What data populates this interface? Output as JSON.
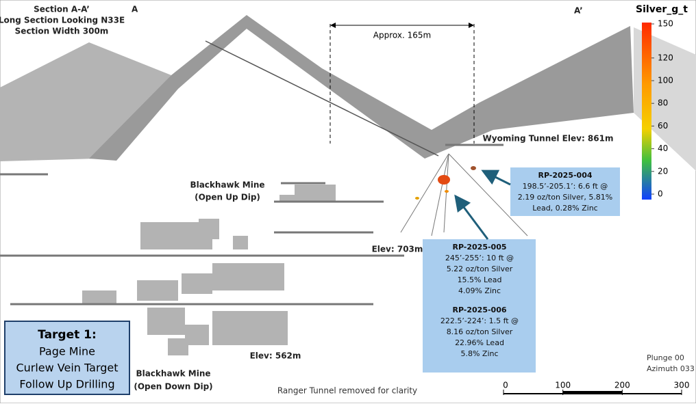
{
  "header": {
    "title_lines": [
      "Section A-A’",
      "Long Section Looking N33E",
      "Section Width 300m"
    ],
    "left_end": "A",
    "right_end": "A’"
  },
  "dimension": {
    "label": "Approx. 165m"
  },
  "labels": {
    "wyoming": "Wyoming Tunnel Elev: 861m",
    "blackhawk_up": [
      "Blackhawk Mine",
      "(Open Up Dip)"
    ],
    "elev_703": "Elev: 703m",
    "elev_562": "Elev: 562m",
    "blackhawk_down": [
      "Blackhawk Mine",
      "(Open Down Dip)"
    ],
    "ranger_note": "Ranger Tunnel removed for clarity",
    "orientation": [
      "Plunge 00",
      "Azimuth 033"
    ]
  },
  "callouts": [
    {
      "lines": [
        "RP-2025-004",
        "198.5’-205.1’: 6.6 ft @",
        "2.19 oz/ton Silver, 5.81%",
        "Lead, 0.28% Zinc"
      ]
    },
    {
      "lines": [
        "RP-2025-005",
        "245’-255’: 10 ft @",
        "5.22 oz/ton Silver",
        "15.5% Lead",
        "4.09% Zinc",
        "RP-2025-006",
        "222.5’-224’: 1.5 ft @",
        "8.16 oz/ton Silver",
        "22.96% Lead",
        "5.8% Zinc"
      ]
    }
  ],
  "target_box": {
    "lines": [
      "Target 1:",
      "Page Mine",
      "Curlew Vein Target",
      "Follow Up Drilling"
    ]
  },
  "legend": {
    "title": "Silver_g_t",
    "range": [
      0,
      150
    ],
    "ticks": [
      150,
      120,
      100,
      80,
      60,
      40,
      20,
      0
    ]
  },
  "scale_bar": {
    "ticks": [
      0,
      100,
      200,
      300
    ]
  }
}
